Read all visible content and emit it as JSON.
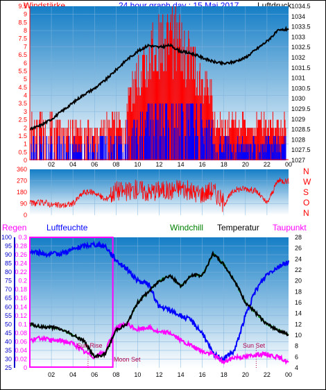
{
  "chart_data": [
    {
      "type": "bar",
      "title": "24 hour graph day : 15 Mai 2017",
      "left_label": "Windstärke",
      "right_label": "Luftdruck",
      "y_ticks_left": [
        "9.5",
        "9",
        "8.5",
        "8",
        "7.5",
        "7",
        "6.5",
        "6",
        "5.5",
        "5",
        "4.5",
        "4",
        "3.5",
        "3",
        "2.5",
        "2",
        "1.5",
        "1",
        "0.5",
        "0"
      ],
      "y_ticks_right": [
        "1034.5",
        "1034",
        "1033.5",
        "1033",
        "1032.5",
        "1032",
        "1031.5",
        "1031",
        "1030.5",
        "1030",
        "1029.5",
        "1029",
        "1028.5",
        "1028",
        "1027.5",
        "1027"
      ],
      "x_ticks": [
        "02",
        "04",
        "06",
        "08",
        "10",
        "12",
        "14",
        "16",
        "18",
        "20",
        "22",
        "00"
      ],
      "ylim_left": [
        0,
        9.5
      ],
      "ylim_right": [
        1027,
        1034.5
      ],
      "pressure": [
        [
          0,
          1028.5
        ],
        [
          1,
          1028.7
        ],
        [
          2,
          1029.0
        ],
        [
          3,
          1029.4
        ],
        [
          4,
          1029.8
        ],
        [
          5,
          1030.2
        ],
        [
          6,
          1030.5
        ],
        [
          7,
          1030.9
        ],
        [
          8,
          1031.4
        ],
        [
          9,
          1031.9
        ],
        [
          10,
          1032.3
        ],
        [
          11,
          1032.6
        ],
        [
          12,
          1032.5
        ],
        [
          13,
          1032.6
        ],
        [
          14,
          1032.3
        ],
        [
          15,
          1032.2
        ],
        [
          16,
          1032.0
        ],
        [
          17,
          1031.8
        ],
        [
          18,
          1031.7
        ],
        [
          19,
          1031.8
        ],
        [
          20,
          1032.0
        ],
        [
          21,
          1032.4
        ],
        [
          22,
          1032.8
        ],
        [
          23,
          1033.3
        ],
        [
          24,
          1033.4
        ]
      ],
      "wind_active_hours": [
        0,
        23.5
      ],
      "wind_max_hours": [
        [
          10,
          9.5
        ],
        [
          12.5,
          9.5
        ],
        [
          14,
          9.5
        ],
        [
          15.5,
          8.5
        ],
        [
          13,
          8
        ]
      ]
    },
    {
      "type": "scatter",
      "series_label": "wind direction",
      "y_ticks": [
        "360",
        "270",
        "180",
        "90",
        "0"
      ],
      "ylim": [
        0,
        360
      ],
      "compass": [
        "N",
        "W",
        "S",
        "O",
        "N"
      ],
      "samples": [
        [
          0,
          90
        ],
        [
          1.5,
          100
        ],
        [
          2,
          80
        ],
        [
          3,
          75
        ],
        [
          4,
          90
        ],
        [
          5,
          180
        ],
        [
          6,
          180
        ],
        [
          7,
          120
        ],
        [
          8,
          200
        ],
        [
          9,
          180
        ],
        [
          10,
          210
        ],
        [
          11,
          180
        ],
        [
          12,
          200
        ],
        [
          13,
          190
        ],
        [
          14,
          220
        ],
        [
          15,
          180
        ],
        [
          16,
          170
        ],
        [
          17,
          200
        ],
        [
          18,
          90
        ],
        [
          19,
          200
        ],
        [
          20,
          210
        ],
        [
          21,
          190
        ],
        [
          22,
          90
        ],
        [
          23,
          270
        ],
        [
          24,
          270
        ]
      ]
    },
    {
      "type": "line",
      "labels": {
        "regen": "Regen",
        "luftfeuchte": "Luftfeuchte",
        "windchill": "Windchill",
        "temperatur": "Temperatur",
        "taupunkt": "Taupunkt"
      },
      "y_ticks_humidity": [
        "100",
        "95",
        "90",
        "85",
        "80",
        "75",
        "70",
        "65",
        "60",
        "55",
        "50",
        "45",
        "40",
        "35",
        "30",
        "25"
      ],
      "y_ticks_rain": [
        "0.3",
        "0.28",
        "0.26",
        "0.24",
        "0.22",
        "0.2",
        "0.18",
        "0.16",
        "0.14",
        "0.12",
        "0.1",
        "0.08",
        "0.06",
        "0.04",
        "0.02",
        "0"
      ],
      "y_ticks_temp": [
        "28",
        "26",
        "24",
        "22",
        "20",
        "18",
        "16",
        "14",
        "12",
        "10",
        "8",
        "6",
        "4"
      ],
      "x_ticks": [
        "02",
        "04",
        "06",
        "08",
        "10",
        "12",
        "14",
        "16",
        "18",
        "20",
        "22",
        "00"
      ],
      "ylim_temp": [
        4,
        28
      ],
      "ylim_humidity": [
        25,
        100
      ],
      "annotations": {
        "sunrise": "Sun Rise",
        "moonset": "Moon Set",
        "sunset": "Sun Set"
      },
      "temperature": [
        [
          0,
          12
        ],
        [
          1,
          11.5
        ],
        [
          2,
          11.5
        ],
        [
          3,
          11
        ],
        [
          4,
          10
        ],
        [
          5,
          9
        ],
        [
          6,
          6
        ],
        [
          7,
          6.5
        ],
        [
          8,
          11
        ],
        [
          9,
          12
        ],
        [
          10,
          16
        ],
        [
          11,
          18
        ],
        [
          12,
          20
        ],
        [
          13,
          21
        ],
        [
          14,
          19
        ],
        [
          15,
          21
        ],
        [
          16,
          21
        ],
        [
          17,
          25
        ],
        [
          18,
          23
        ],
        [
          19,
          20
        ],
        [
          20,
          16
        ],
        [
          21,
          14
        ],
        [
          22,
          12
        ],
        [
          23,
          11
        ],
        [
          24,
          10
        ]
      ],
      "humidity": [
        [
          0,
          92
        ],
        [
          1,
          91
        ],
        [
          2,
          90
        ],
        [
          3,
          91
        ],
        [
          4,
          93
        ],
        [
          5,
          95
        ],
        [
          6,
          96
        ],
        [
          7,
          95
        ],
        [
          8,
          87
        ],
        [
          9,
          82
        ],
        [
          10,
          75
        ],
        [
          11,
          73
        ],
        [
          12,
          60
        ],
        [
          13,
          58
        ],
        [
          14,
          55
        ],
        [
          15,
          52
        ],
        [
          16,
          45
        ],
        [
          17,
          33
        ],
        [
          18,
          30
        ],
        [
          19,
          35
        ],
        [
          20,
          55
        ],
        [
          21,
          70
        ],
        [
          22,
          79
        ],
        [
          23,
          83
        ],
        [
          24,
          86
        ]
      ],
      "dewpoint": [
        [
          0,
          9
        ],
        [
          1,
          9.5
        ],
        [
          2,
          9
        ],
        [
          3,
          9
        ],
        [
          4,
          8.5
        ],
        [
          5,
          7
        ],
        [
          6,
          6
        ],
        [
          7,
          7
        ],
        [
          8,
          11.5
        ],
        [
          9,
          12
        ],
        [
          10,
          11
        ],
        [
          11,
          11.5
        ],
        [
          12,
          10.5
        ],
        [
          13,
          10.5
        ],
        [
          14,
          9
        ],
        [
          15,
          8
        ],
        [
          16,
          7
        ],
        [
          17,
          6.5
        ],
        [
          18,
          5
        ],
        [
          19,
          6
        ],
        [
          20,
          6
        ],
        [
          21,
          6.5
        ],
        [
          22,
          6.5
        ],
        [
          23,
          6
        ],
        [
          24,
          5
        ]
      ],
      "windchill": [
        [
          0,
          12
        ],
        [
          1,
          11.5
        ],
        [
          2,
          11.5
        ],
        [
          3,
          11
        ],
        [
          4,
          10
        ],
        [
          5,
          9
        ],
        [
          6,
          6
        ],
        [
          7,
          6.5
        ],
        [
          8,
          11
        ],
        [
          9,
          12
        ],
        [
          10,
          16
        ],
        [
          11,
          18
        ],
        [
          12,
          20
        ],
        [
          13,
          21
        ],
        [
          14,
          19
        ],
        [
          15,
          21
        ],
        [
          16,
          21
        ],
        [
          17,
          25
        ],
        [
          18,
          23
        ],
        [
          19,
          20
        ],
        [
          20,
          16
        ],
        [
          21,
          14
        ],
        [
          22,
          12
        ],
        [
          23,
          11
        ],
        [
          24,
          10
        ]
      ],
      "rain": [
        [
          0,
          0
        ],
        [
          24,
          0
        ]
      ],
      "rain_box": [
        [
          0,
          0.3
        ],
        [
          7.7,
          0.3
        ]
      ]
    }
  ],
  "colors": {
    "pressure": "#000000",
    "wind_avg": "#0000ff",
    "wind_gust": "#ff0000",
    "temperature": "#000000",
    "humidity": "#0000ff",
    "dewpoint": "#ff00ff",
    "windchill": "#008000",
    "rain": "#ff00ff",
    "bg_top": "#157ec6",
    "bg_bottom": "#ffffff"
  }
}
